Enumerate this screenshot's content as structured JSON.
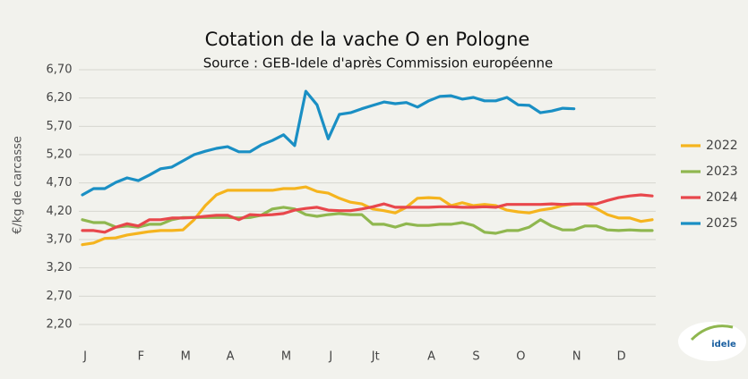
{
  "chart_data": {
    "type": "line",
    "title": "Cotation de la vache O en Pologne",
    "subtitle": "Source : GEB-Idele d'après Commission européenne",
    "y_label": "€/kg de carcasse",
    "logo": "idele",
    "categories": [
      "J",
      null,
      null,
      null,
      null,
      "F",
      null,
      null,
      null,
      "M",
      null,
      null,
      null,
      "A",
      null,
      null,
      null,
      null,
      "M",
      null,
      null,
      null,
      "J",
      null,
      null,
      null,
      "Jt",
      null,
      null,
      null,
      null,
      "A",
      null,
      null,
      null,
      "S",
      null,
      null,
      null,
      "O",
      null,
      null,
      null,
      null,
      "N",
      null,
      null,
      null,
      "D",
      null,
      null,
      null
    ],
    "ylim": [
      2.2,
      6.7
    ],
    "yticks": [
      {
        "value": 2.2,
        "label": "2,20"
      },
      {
        "value": 2.7,
        "label": "2,70"
      },
      {
        "value": 3.2,
        "label": "3,20"
      },
      {
        "value": 3.7,
        "label": "3,70"
      },
      {
        "value": 4.2,
        "label": "4,20"
      },
      {
        "value": 4.7,
        "label": "4,70"
      },
      {
        "value": 5.2,
        "label": "5,20"
      },
      {
        "value": 5.7,
        "label": "5,70"
      },
      {
        "value": 6.2,
        "label": "6,20"
      },
      {
        "value": 6.7,
        "label": "6,70"
      }
    ],
    "grid": true,
    "legend": "right",
    "series": [
      {
        "name": "2022",
        "color": "#f5b41e",
        "values": [
          3.61,
          3.64,
          3.72,
          3.73,
          3.78,
          3.81,
          3.84,
          3.86,
          3.86,
          3.87,
          4.05,
          4.3,
          4.49,
          4.57,
          4.57,
          4.57,
          4.57,
          4.57,
          4.6,
          4.6,
          4.63,
          4.55,
          4.52,
          4.43,
          4.36,
          4.33,
          4.24,
          4.21,
          4.17,
          4.27,
          4.43,
          4.44,
          4.43,
          4.3,
          4.35,
          4.3,
          4.32,
          4.3,
          4.22,
          4.19,
          4.17,
          4.22,
          4.25,
          4.3,
          4.33,
          4.33,
          4.25,
          4.14,
          4.08,
          4.08,
          4.02,
          4.05
        ]
      },
      {
        "name": "2023",
        "color": "#8fb74f",
        "values": [
          4.05,
          4.0,
          4.0,
          3.92,
          3.94,
          3.92,
          3.97,
          3.97,
          4.05,
          4.09,
          4.09,
          4.09,
          4.09,
          4.09,
          4.08,
          4.09,
          4.13,
          4.24,
          4.27,
          4.24,
          4.14,
          4.11,
          4.14,
          4.16,
          4.14,
          4.14,
          3.97,
          3.97,
          3.92,
          3.98,
          3.95,
          3.95,
          3.97,
          3.97,
          4.0,
          3.95,
          3.83,
          3.81,
          3.86,
          3.86,
          3.92,
          4.05,
          3.94,
          3.87,
          3.87,
          3.94,
          3.94,
          3.87,
          3.86,
          3.87,
          3.86,
          3.86
        ]
      },
      {
        "name": "2024",
        "color": "#e8474c",
        "values": [
          3.86,
          3.86,
          3.83,
          3.92,
          3.98,
          3.94,
          4.05,
          4.05,
          4.08,
          4.08,
          4.09,
          4.11,
          4.13,
          4.13,
          4.05,
          4.14,
          4.13,
          4.14,
          4.16,
          4.22,
          4.25,
          4.27,
          4.22,
          4.21,
          4.21,
          4.24,
          4.28,
          4.33,
          4.27,
          4.27,
          4.27,
          4.27,
          4.28,
          4.28,
          4.27,
          4.27,
          4.28,
          4.27,
          4.32,
          4.32,
          4.32,
          4.32,
          4.33,
          4.32,
          4.33,
          4.33,
          4.33,
          4.39,
          4.44,
          4.47,
          4.49,
          4.47
        ]
      },
      {
        "name": "2025",
        "color": "#1a8fc4",
        "values": [
          4.49,
          4.6,
          4.6,
          4.71,
          4.79,
          4.74,
          4.84,
          4.95,
          4.98,
          5.09,
          5.2,
          5.26,
          5.31,
          5.34,
          5.25,
          5.25,
          5.37,
          5.45,
          5.55,
          5.36,
          6.32,
          6.08,
          5.48,
          5.91,
          5.94,
          6.01,
          6.07,
          6.13,
          6.1,
          6.12,
          6.04,
          6.15,
          6.23,
          6.24,
          6.18,
          6.21,
          6.15,
          6.15,
          6.21,
          6.08,
          6.07,
          5.94,
          5.97,
          6.02,
          6.01,
          null,
          null,
          null,
          null,
          null,
          null,
          null
        ]
      }
    ]
  }
}
